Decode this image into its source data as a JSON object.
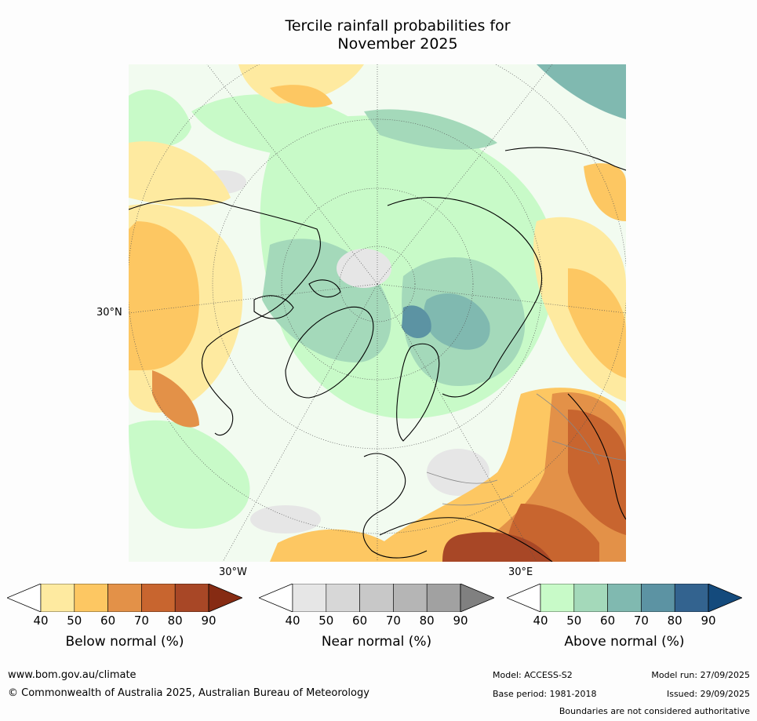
{
  "title_line1": "Tercile rainfall probabilities for",
  "title_line2": "November 2025",
  "map": {
    "lat_label": "30°N",
    "lon_label_left": "30°W",
    "lon_label_right": "30°E"
  },
  "legends": [
    {
      "title": "Below normal (%)",
      "ticks": [
        "40",
        "50",
        "60",
        "70",
        "80",
        "90"
      ],
      "colors": [
        "#ffffff",
        "#feeaa0",
        "#fdc762",
        "#e39148",
        "#c8652f",
        "#a84726",
        "#862b13"
      ]
    },
    {
      "title": "Near normal (%)",
      "ticks": [
        "40",
        "50",
        "60",
        "70",
        "80",
        "90"
      ],
      "colors": [
        "#ffffff",
        "#e6e6e6",
        "#d7d7d7",
        "#c8c8c8",
        "#b5b5b5",
        "#a1a1a1",
        "#808080"
      ]
    },
    {
      "title": "Above normal (%)",
      "ticks": [
        "40",
        "50",
        "60",
        "70",
        "80",
        "90"
      ],
      "colors": [
        "#ffffff",
        "#c8fac8",
        "#a4d9ba",
        "#80b9b0",
        "#5c93a3",
        "#33638f",
        "#144a7c"
      ]
    }
  ],
  "footer": {
    "url": "www.bom.gov.au/climate",
    "copyright": "© Commonwealth of Australia 2025, Australian Bureau of Meteorology",
    "model": "Model: ACCESS-S2",
    "model_run": "Model run: 27/09/2025",
    "base_period": "Base period: 1981-2018",
    "issued": "Issued: 29/09/2025",
    "disclaimer": "Boundaries are not considered authoritative"
  }
}
